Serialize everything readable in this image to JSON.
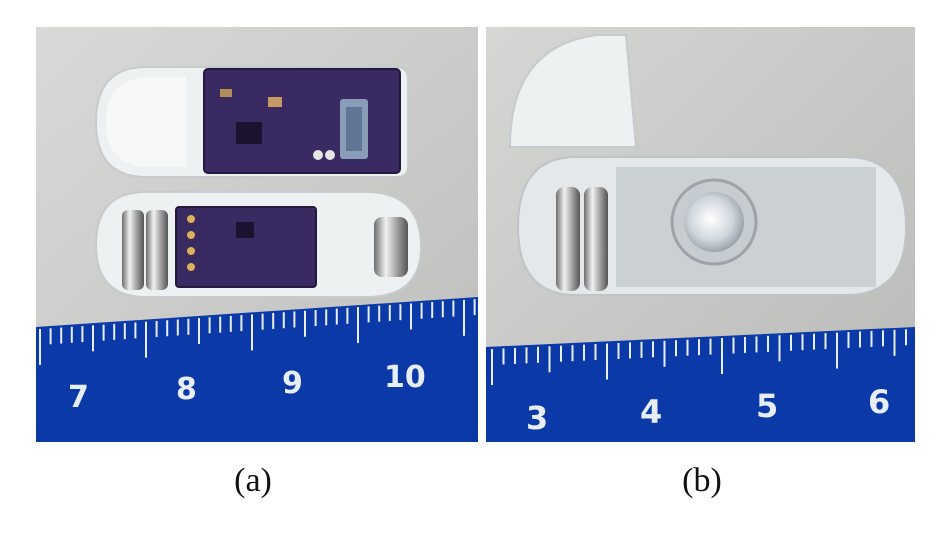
{
  "figure": {
    "panels": [
      {
        "caption": "(a)",
        "ruler_labels": [
          "7",
          "8",
          "9",
          "10"
        ]
      },
      {
        "caption": "(b)",
        "ruler_labels": [
          "3",
          "4",
          "5",
          "6"
        ]
      }
    ]
  },
  "colors": {
    "background": "#ffffff",
    "ruler_blue": "#0b3aa8",
    "pcb_purple": "#3a2a62",
    "capsule_clear": "#e8ecef",
    "tabletop": "#cfcfcd"
  }
}
